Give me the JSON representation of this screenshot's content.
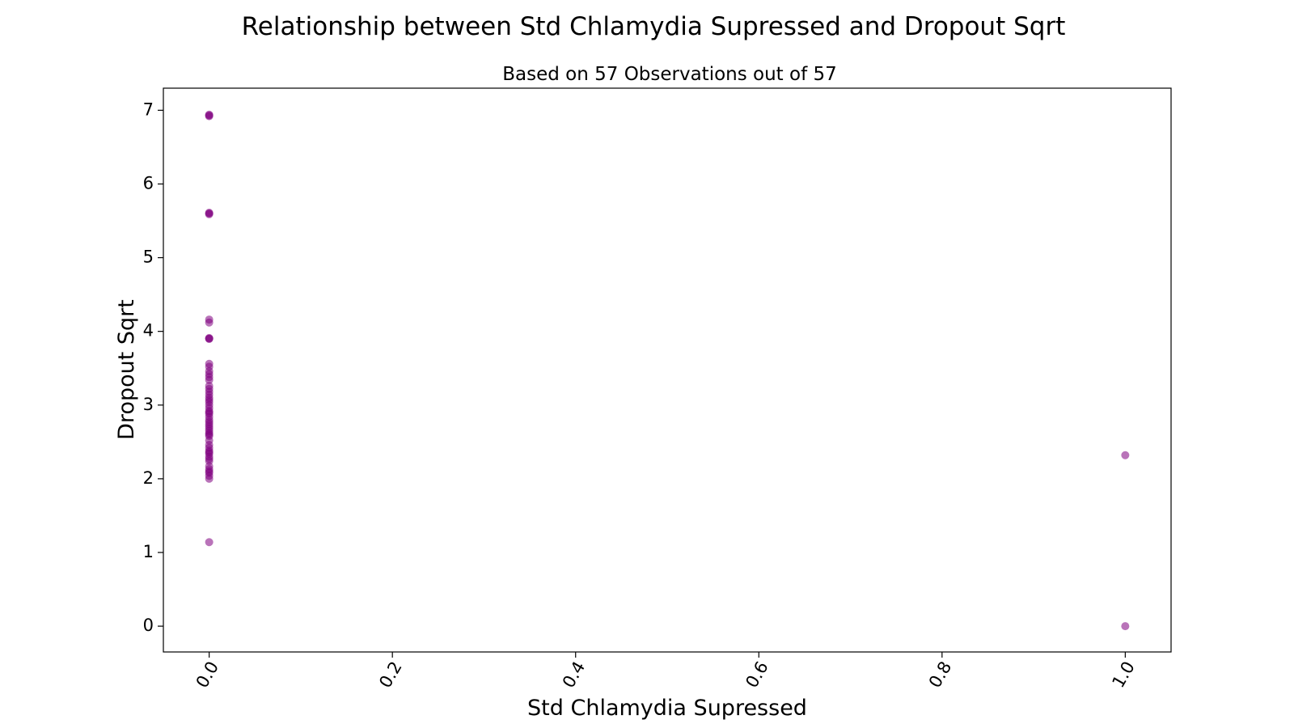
{
  "chart_data": {
    "type": "scatter",
    "title": "Relationship between Std Chlamydia Supressed and Dropout Sqrt",
    "subtitle": "Based on 57 Observations out of 57",
    "xlabel": "Std Chlamydia Supressed",
    "ylabel": "Dropout Sqrt",
    "xlim": [
      -0.05,
      1.05
    ],
    "ylim": [
      -0.35,
      7.3
    ],
    "xticks": [
      0.0,
      0.2,
      0.4,
      0.6,
      0.8,
      1.0
    ],
    "xtick_labels": [
      "0.0",
      "0.2",
      "0.4",
      "0.6",
      "0.8",
      "1.0"
    ],
    "yticks": [
      0,
      1,
      2,
      3,
      4,
      5,
      6,
      7
    ],
    "ytick_labels": [
      "0",
      "1",
      "2",
      "3",
      "4",
      "5",
      "6",
      "7"
    ],
    "xtick_rotation": 60,
    "grid": false,
    "marker_color": "#800080",
    "marker_alpha": 0.55,
    "points": [
      {
        "x": 0,
        "y": 6.93
      },
      {
        "x": 0,
        "y": 6.92
      },
      {
        "x": 0,
        "y": 6.94
      },
      {
        "x": 0,
        "y": 5.6
      },
      {
        "x": 0,
        "y": 5.59
      },
      {
        "x": 0,
        "y": 5.61
      },
      {
        "x": 0,
        "y": 4.16
      },
      {
        "x": 0,
        "y": 4.12
      },
      {
        "x": 0,
        "y": 3.9
      },
      {
        "x": 0,
        "y": 3.9
      },
      {
        "x": 0,
        "y": 3.91
      },
      {
        "x": 0,
        "y": 3.56
      },
      {
        "x": 0,
        "y": 3.52
      },
      {
        "x": 0,
        "y": 3.46
      },
      {
        "x": 0,
        "y": 3.42
      },
      {
        "x": 0,
        "y": 3.38
      },
      {
        "x": 0,
        "y": 3.26
      },
      {
        "x": 0,
        "y": 3.22
      },
      {
        "x": 0,
        "y": 3.18
      },
      {
        "x": 0,
        "y": 3.14
      },
      {
        "x": 0,
        "y": 3.1
      },
      {
        "x": 0,
        "y": 3.07
      },
      {
        "x": 0,
        "y": 3.04
      },
      {
        "x": 0,
        "y": 3.0
      },
      {
        "x": 0,
        "y": 2.96
      },
      {
        "x": 0,
        "y": 2.92
      },
      {
        "x": 0,
        "y": 2.88
      },
      {
        "x": 0,
        "y": 2.84
      },
      {
        "x": 0,
        "y": 2.8
      },
      {
        "x": 0,
        "y": 2.77
      },
      {
        "x": 0,
        "y": 2.74
      },
      {
        "x": 0,
        "y": 2.71
      },
      {
        "x": 0,
        "y": 2.68
      },
      {
        "x": 0,
        "y": 2.62
      },
      {
        "x": 0,
        "y": 2.6
      },
      {
        "x": 0,
        "y": 2.58
      },
      {
        "x": 0,
        "y": 2.52
      },
      {
        "x": 0,
        "y": 2.46
      },
      {
        "x": 0,
        "y": 2.42
      },
      {
        "x": 0,
        "y": 2.38
      },
      {
        "x": 0,
        "y": 2.34
      },
      {
        "x": 0,
        "y": 2.3
      },
      {
        "x": 0,
        "y": 2.27
      },
      {
        "x": 0,
        "y": 2.24
      },
      {
        "x": 0,
        "y": 2.17
      },
      {
        "x": 0,
        "y": 2.13
      },
      {
        "x": 0,
        "y": 2.08
      },
      {
        "x": 0,
        "y": 2.04
      },
      {
        "x": 0,
        "y": 2.0
      },
      {
        "x": 0,
        "y": 2.1
      },
      {
        "x": 0,
        "y": 2.65
      },
      {
        "x": 0,
        "y": 2.9
      },
      {
        "x": 0,
        "y": 3.34
      },
      {
        "x": 0,
        "y": 2.36
      },
      {
        "x": 0,
        "y": 1.14
      },
      {
        "x": 1,
        "y": 2.32
      },
      {
        "x": 1,
        "y": 0.0
      }
    ]
  }
}
